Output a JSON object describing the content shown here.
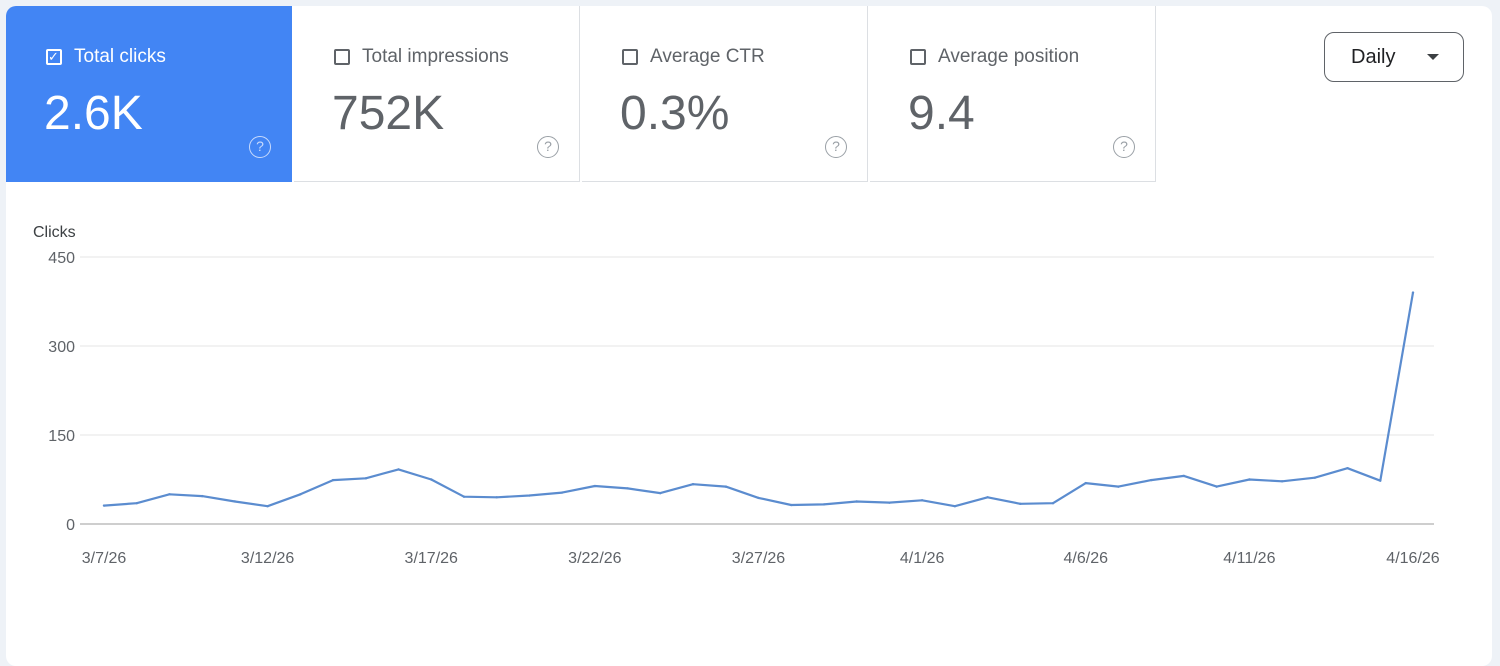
{
  "metrics": [
    {
      "label": "Total clicks",
      "value": "2.6K",
      "checked": true
    },
    {
      "label": "Total impressions",
      "value": "752K",
      "checked": false
    },
    {
      "label": "Average CTR",
      "value": "0.3%",
      "checked": false
    },
    {
      "label": "Average position",
      "value": "9.4",
      "checked": false
    }
  ],
  "dropdown": {
    "label": "Daily"
  },
  "icons": {
    "help": "help-circle-icon",
    "check": "checkmark-icon",
    "dropdown": "caret-down-icon"
  },
  "colors": {
    "accent": "#4285f4",
    "line": "#5b8ccf",
    "grid": "#e6e6e6"
  },
  "chart_data": {
    "type": "line",
    "ylabel": "Clicks",
    "ylim": [
      0,
      450
    ],
    "yticks": [
      "0",
      "150",
      "300",
      "450"
    ],
    "xtick_labels": [
      "3/7/26",
      "3/12/26",
      "3/17/26",
      "3/22/26",
      "3/27/26",
      "4/1/26",
      "4/6/26",
      "4/11/26",
      "4/16/26"
    ],
    "grid": true,
    "series": [
      {
        "values": [
          31,
          35,
          50,
          47,
          38,
          30,
          50,
          74,
          77,
          92,
          75,
          46,
          45,
          48,
          53,
          64,
          60,
          52,
          67,
          63,
          44,
          32,
          33,
          38,
          36,
          40,
          30,
          45,
          34,
          35,
          69,
          63,
          74,
          81,
          63,
          75,
          72,
          78,
          94,
          73,
          390
        ]
      }
    ]
  }
}
